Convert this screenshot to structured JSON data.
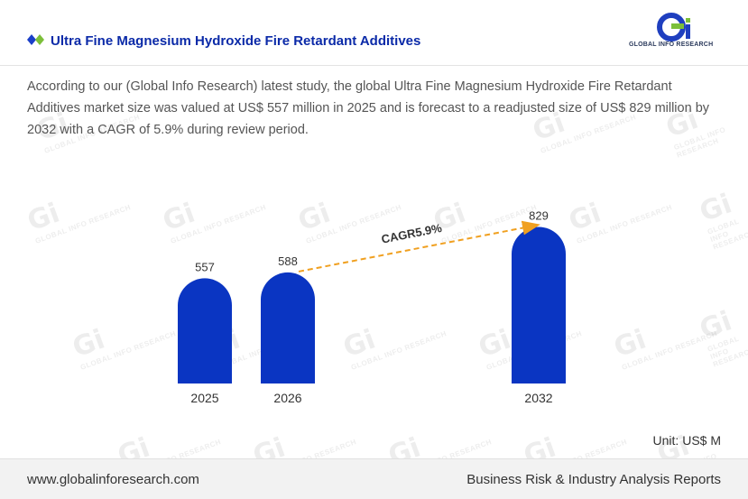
{
  "header": {
    "title": "Ultra Fine Magnesium Hydroxide Fire Retardant Additives",
    "logo_text": "GLOBAL INFO RESEARCH",
    "logo_mark": "Gi"
  },
  "description": "According to our (Global Info Research) latest study, the global Ultra Fine Magnesium Hydroxide Fire Retardant Additives market size was valued at US$ 557 million in 2025 and is forecast to a readjusted size of US$ 829 million by 2032 with a CAGR of 5.9% during review period.",
  "unit_label": "Unit: US$ M",
  "footer": {
    "website": "www.globalinforesearch.com",
    "tagline": "Business Risk & Industry Analysis Reports"
  },
  "colors": {
    "bar": "#0a35c2",
    "title": "#0b2aa8",
    "cagr_arrow": "#f0a020",
    "diamond_blue": "#1a3fc8",
    "diamond_green": "#7cbf3a"
  },
  "chart_data": {
    "type": "bar",
    "categories": [
      "2025",
      "2026",
      "2032"
    ],
    "values": [
      557,
      588,
      829
    ],
    "data_labels": [
      "557",
      "588",
      "829"
    ],
    "annotation": "CAGR5.9%",
    "unit": "US$ M"
  }
}
